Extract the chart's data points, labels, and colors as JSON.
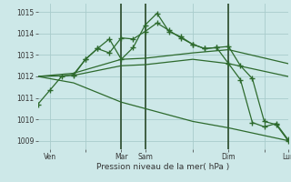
{
  "xlabel": "Pression niveau de la mer( hPa )",
  "background_color": "#cde8e8",
  "grid_color": "#a8cccc",
  "line_color": "#2d6a2d",
  "vline_color": "#2a4a2a",
  "ylim": [
    1008.6,
    1015.4
  ],
  "xlim": [
    0,
    21
  ],
  "xtick_labels": [
    "Ven",
    "",
    "Mar",
    "Sam",
    "",
    "Dim",
    "",
    "Lun"
  ],
  "xtick_positions": [
    1,
    4,
    7,
    9,
    13,
    16,
    19,
    21
  ],
  "ytick_values": [
    1009,
    1010,
    1011,
    1012,
    1013,
    1014,
    1015
  ],
  "vline_positions": [
    7,
    9,
    16
  ],
  "series": [
    {
      "x": [
        0,
        1,
        2,
        3,
        4,
        5,
        6,
        7,
        8,
        9,
        10,
        11,
        12,
        13,
        14,
        15,
        16,
        17,
        18,
        19,
        20,
        21
      ],
      "y": [
        1010.7,
        1011.35,
        1012.0,
        1012.1,
        1012.8,
        1013.3,
        1013.1,
        1013.8,
        1013.75,
        1014.1,
        1014.5,
        1014.15,
        1013.8,
        1013.5,
        1013.3,
        1013.35,
        1013.4,
        1012.5,
        1011.9,
        1009.9,
        1009.75,
        1009.0
      ],
      "marker": true
    },
    {
      "x": [
        0,
        3,
        7,
        9,
        13,
        16,
        21
      ],
      "y": [
        1012.0,
        1012.15,
        1012.8,
        1012.85,
        1013.1,
        1013.25,
        1012.6
      ],
      "marker": false
    },
    {
      "x": [
        0,
        3,
        7,
        9,
        13,
        16,
        21
      ],
      "y": [
        1012.0,
        1012.05,
        1012.5,
        1012.55,
        1012.8,
        1012.6,
        1012.0
      ],
      "marker": false
    },
    {
      "x": [
        0,
        3,
        7,
        9,
        13,
        16,
        21
      ],
      "y": [
        1012.0,
        1011.7,
        1010.8,
        1010.5,
        1009.9,
        1009.6,
        1009.0
      ],
      "marker": false
    },
    {
      "x": [
        3,
        4,
        5,
        6,
        7,
        8,
        9,
        10,
        11,
        12,
        13,
        14,
        15,
        16,
        17,
        18,
        19,
        20,
        21
      ],
      "y": [
        1012.05,
        1012.8,
        1013.3,
        1013.75,
        1012.8,
        1013.35,
        1014.4,
        1014.95,
        1014.1,
        1013.85,
        1013.5,
        1013.3,
        1013.35,
        1012.6,
        1011.85,
        1009.85,
        1009.65,
        1009.8,
        1009.05
      ],
      "marker": true
    }
  ]
}
